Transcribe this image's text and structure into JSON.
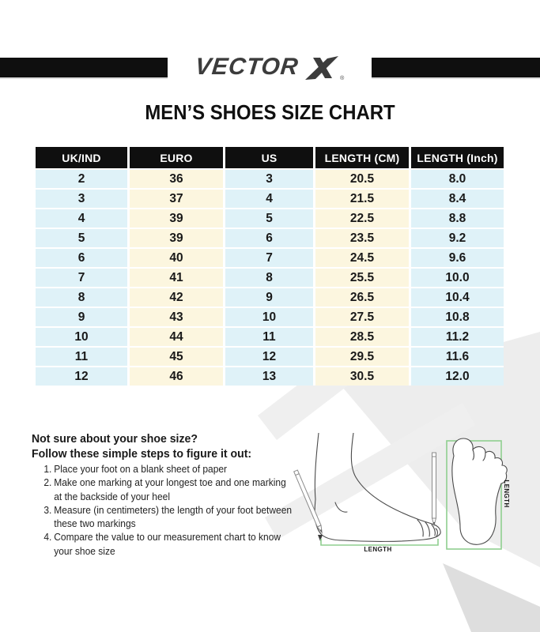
{
  "header": {
    "logo_text": "VECTOR",
    "registered_symbol": "®"
  },
  "title": "MEN’S SHOES SIZE CHART",
  "size_chart": {
    "columns": [
      "UK/IND",
      "EURO",
      "US",
      "LENGTH (CM)",
      "LENGTH (Inch)"
    ],
    "rows": [
      [
        "2",
        "36",
        "3",
        "20.5",
        "8.0"
      ],
      [
        "3",
        "37",
        "4",
        "21.5",
        "8.4"
      ],
      [
        "4",
        "39",
        "5",
        "22.5",
        "8.8"
      ],
      [
        "5",
        "39",
        "6",
        "23.5",
        "9.2"
      ],
      [
        "6",
        "40",
        "7",
        "24.5",
        "9.6"
      ],
      [
        "7",
        "41",
        "8",
        "25.5",
        "10.0"
      ],
      [
        "8",
        "42",
        "9",
        "26.5",
        "10.4"
      ],
      [
        "9",
        "43",
        "10",
        "27.5",
        "10.8"
      ],
      [
        "10",
        "44",
        "11",
        "28.5",
        "11.2"
      ],
      [
        "11",
        "45",
        "12",
        "29.5",
        "11.6"
      ],
      [
        "12",
        "46",
        "13",
        "30.5",
        "12.0"
      ]
    ]
  },
  "guide": {
    "heading_line1": "Not sure about your shoe size?",
    "heading_line2": "Follow these simple steps to figure it out:",
    "steps": [
      {
        "num": "1.",
        "lines": [
          "Place your foot on a blank sheet of paper"
        ]
      },
      {
        "num": "2.",
        "lines": [
          "Make one marking at your longest toe and one marking",
          "at the backside of your heel"
        ]
      },
      {
        "num": "3.",
        "lines": [
          "Measure (in centimeters) the length of your foot between",
          "these two markings"
        ]
      },
      {
        "num": "4.",
        "lines": [
          "Compare the value to our measurement chart to know",
          "your shoe size"
        ]
      }
    ]
  },
  "illustration": {
    "length_label_side": "LENGTH",
    "length_label_top": "LENGTH"
  },
  "colors": {
    "accent_green": "#8fcf8f",
    "column_blue": "#dff2f8",
    "column_cream": "#fcf6df",
    "table_header_bg": "#0f0f0f",
    "logo_gray": "#3c3c3c",
    "watermark_light": "#ededed",
    "watermark_dark": "#dedede"
  }
}
